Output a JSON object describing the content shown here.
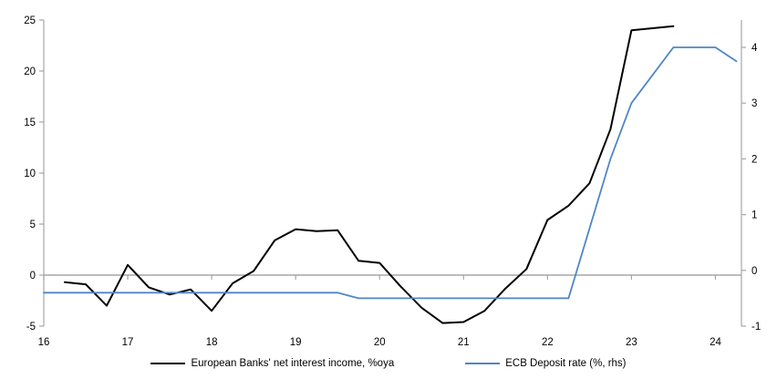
{
  "chart_data": {
    "type": "line",
    "title": "",
    "legend_position": "bottom",
    "grid": false,
    "x_axis": {
      "ticks": [
        16,
        17,
        18,
        19,
        20,
        21,
        22,
        23,
        24
      ],
      "range": [
        16,
        24.31
      ]
    },
    "left_axis": {
      "ticks": [
        25,
        20,
        15,
        10,
        5,
        0,
        -5
      ],
      "range": [
        -5,
        25
      ]
    },
    "right_axis": {
      "ticks": [
        4,
        3,
        2,
        1,
        0,
        -1
      ],
      "range": [
        -1,
        4.49
      ]
    },
    "style": {
      "background": "#FFFFFF",
      "axis_color": "#A6A6A6",
      "zero_line_color": "#A6A6A6",
      "text_color": "#000000"
    },
    "series": [
      {
        "id": "nii",
        "name": "European Banks' net interest income, %oya",
        "axis": "left",
        "color": "#000000",
        "width": 2,
        "x_start": 16.25,
        "x_step": 0.25,
        "values": [
          -0.7,
          -0.9,
          -3.0,
          1.0,
          -1.2,
          -1.9,
          -1.4,
          -3.5,
          -0.8,
          0.4,
          3.4,
          4.5,
          4.3,
          4.4,
          1.4,
          1.2,
          -1.1,
          -3.2,
          -4.7,
          -4.6,
          -3.5,
          -1.3,
          0.6,
          5.4,
          6.8,
          9.0,
          14.3,
          24.0,
          24.2,
          24.4
        ]
      },
      {
        "id": "ecb",
        "name": "ECB Deposit rate (%, rhs)",
        "axis": "right",
        "color": "#4F86C6",
        "width": 1.8,
        "x_start": 16.0,
        "x_step": 0.25,
        "values": [
          -0.4,
          -0.4,
          -0.4,
          -0.4,
          -0.4,
          -0.4,
          -0.4,
          -0.4,
          -0.4,
          -0.4,
          -0.4,
          -0.4,
          -0.4,
          -0.4,
          -0.4,
          -0.5,
          -0.5,
          -0.5,
          -0.5,
          -0.5,
          -0.5,
          -0.5,
          -0.5,
          -0.5,
          -0.5,
          -0.5,
          0.75,
          2.0,
          3.0,
          3.5,
          4.0,
          4.0,
          4.0,
          3.75
        ]
      }
    ]
  },
  "legend": {
    "nii_label": "European Banks' net interest income, %oya",
    "ecb_label": "ECB Deposit rate (%, rhs)"
  }
}
